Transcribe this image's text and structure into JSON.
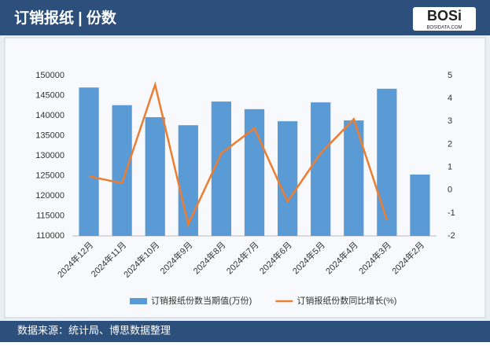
{
  "header": {
    "logo": "BOSi",
    "logo_sub": "BOSIDATA.COM"
  },
  "chart_data": {
    "type": "bar",
    "title": "订销报纸 | 份数",
    "categories": [
      "2024年12月",
      "2024年11月",
      "2024年10月",
      "2024年9月",
      "2024年8月",
      "2024年7月",
      "2024年6月",
      "2024年5月",
      "2024年4月",
      "2024年3月",
      "2024年2月"
    ],
    "series": [
      {
        "name": "订销报纸份数当期值(万份)",
        "type": "bar",
        "color": "#5b9bd5",
        "values": [
          147000,
          142600,
          139600,
          137600,
          143500,
          141600,
          138600,
          143300,
          138800,
          146700,
          125300
        ]
      },
      {
        "name": "订销报纸份数同比增长(%)",
        "type": "line",
        "axis": "y2",
        "color": "#ed7d31",
        "values": [
          0.6,
          0.3,
          4.6,
          -1.5,
          1.6,
          2.7,
          -0.5,
          1.6,
          3.1,
          -1.3,
          null
        ]
      }
    ],
    "ylim": [
      110000,
      150000
    ],
    "yticks": [
      110000,
      115000,
      120000,
      125000,
      130000,
      135000,
      140000,
      145000,
      150000
    ],
    "y2lim": [
      -2,
      5
    ],
    "y2ticks": [
      -2,
      -1,
      0,
      1,
      2,
      3,
      4,
      5
    ],
    "grid": false,
    "legend": "bottom"
  },
  "footer": {
    "source": "数据来源：统计局、博思数据整理"
  }
}
